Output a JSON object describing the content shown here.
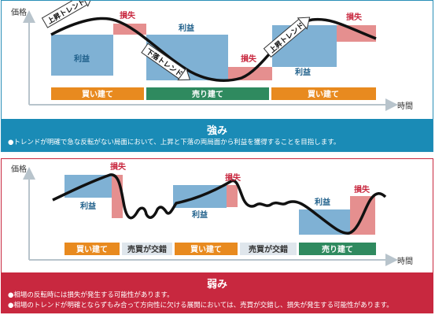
{
  "top": {
    "axis_y": "価格",
    "axis_x": "時間",
    "labels": {
      "uptrend": "上昇トレンド",
      "downtrend": "下落トレンド",
      "profit": "利益",
      "loss": "損失"
    },
    "actions": [
      "買い建て",
      "売り建て",
      "買い建て"
    ],
    "banner_title": "強み",
    "banner_text": "●トレンドが明確で急な反転がない局面において、上昇と下落の両局面から利益を獲得することを目指します。"
  },
  "bottom": {
    "axis_y": "価格",
    "axis_x": "時間",
    "labels": {
      "profit": "利益",
      "loss": "損失"
    },
    "actions": [
      "買い建て",
      "売買が交錯",
      "買い建て",
      "売買が交錯",
      "売り建て"
    ],
    "banner_title": "弱み",
    "banner_lines": [
      "●相場の反転時には損失が発生する可能性があります。",
      "●相場のトレンドが明確とならずもみ合って方向性に欠ける展開においては、売買が交錯し、損失が発生する可能性があります。"
    ]
  },
  "colors": {
    "profit": "#7fb1d4",
    "loss": "#e58f8f",
    "buy": "#e88a1f",
    "sell": "#2f8a5f",
    "mixed": "#dfe6ec",
    "strong_banner": "#1a8bb6",
    "weak_banner": "#c8283f",
    "loss_text": "#c8283f",
    "profit_text": "#1e5f8a"
  }
}
